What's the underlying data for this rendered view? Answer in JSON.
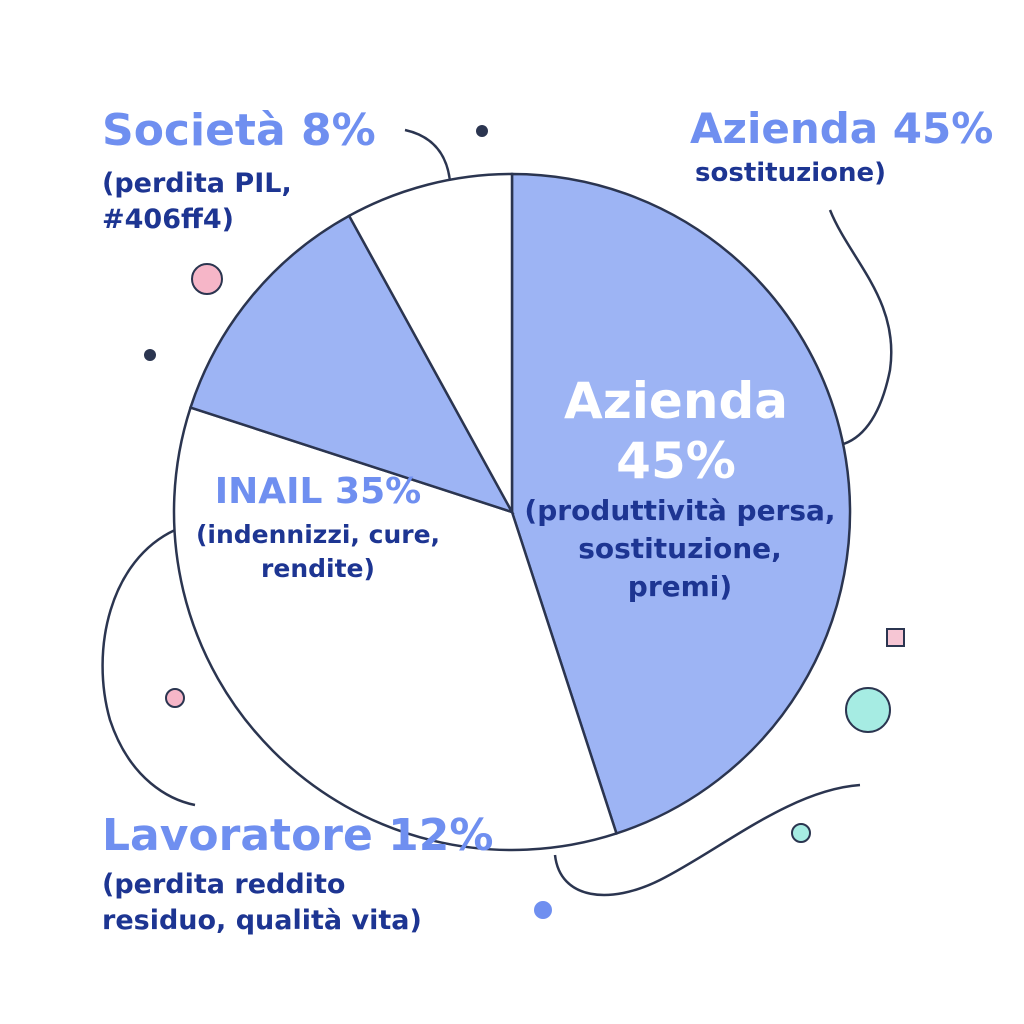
{
  "chart_data": {
    "type": "pie",
    "categories": [
      "Azienda",
      "INAIL",
      "Lavoratore",
      "Società"
    ],
    "values": [
      45,
      35,
      12,
      8
    ],
    "value_labels": [
      "45%",
      "35%",
      "12%",
      "8%"
    ],
    "colors": [
      "#9db4f4",
      "#ffffff",
      "#9db4f4",
      "#ffffff"
    ],
    "descriptions": [
      [
        "(produttività persa,",
        "sostituzione,",
        "premi)"
      ],
      [
        "(indennizzi, cure,",
        "rendite)"
      ],
      [
        "(perdita reddito",
        "residuo, qualità vita)"
      ],
      [
        "(perdita PIL,",
        "#406ff4)"
      ]
    ],
    "annotations": [
      "sostituzione)"
    ]
  }
}
